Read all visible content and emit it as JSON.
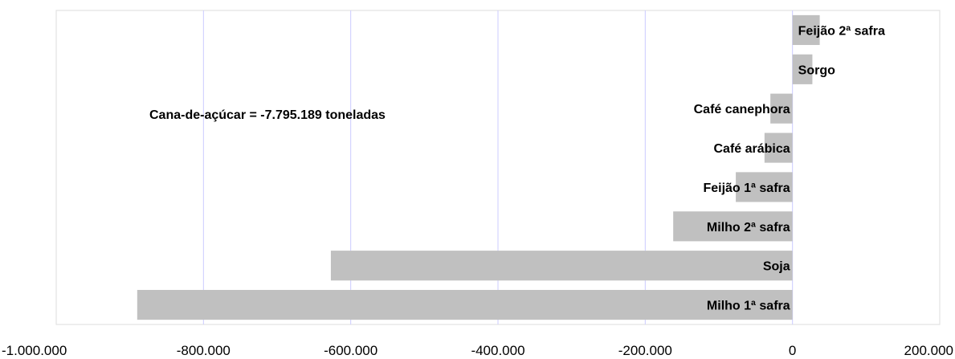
{
  "chart_data": {
    "type": "bar",
    "orientation": "horizontal",
    "categories": [
      "Milho 1ª safra",
      "Soja",
      "Milho 2ª safra",
      "Feijão 1ª safra",
      "Café arábica",
      "Café canephora",
      "Sorgo",
      "Feijão 2ª safra"
    ],
    "values": [
      -890000,
      -627000,
      -162000,
      -77000,
      -38000,
      -30000,
      27000,
      37000
    ],
    "xlim": [
      -1000000,
      200000
    ],
    "xticks": [
      -1000000,
      -800000,
      -600000,
      -400000,
      -200000,
      0,
      200000
    ],
    "xtick_labels": [
      "-1.000.000",
      "-800.000",
      "-600.000",
      "-400.000",
      "-200.000",
      "0",
      "200.000"
    ],
    "grid": "vertical",
    "bar_color": "#c0c0c0",
    "grid_color": "#ccccff",
    "annotation": "Cana-de-açúcar = -7.795.189 toneladas"
  }
}
